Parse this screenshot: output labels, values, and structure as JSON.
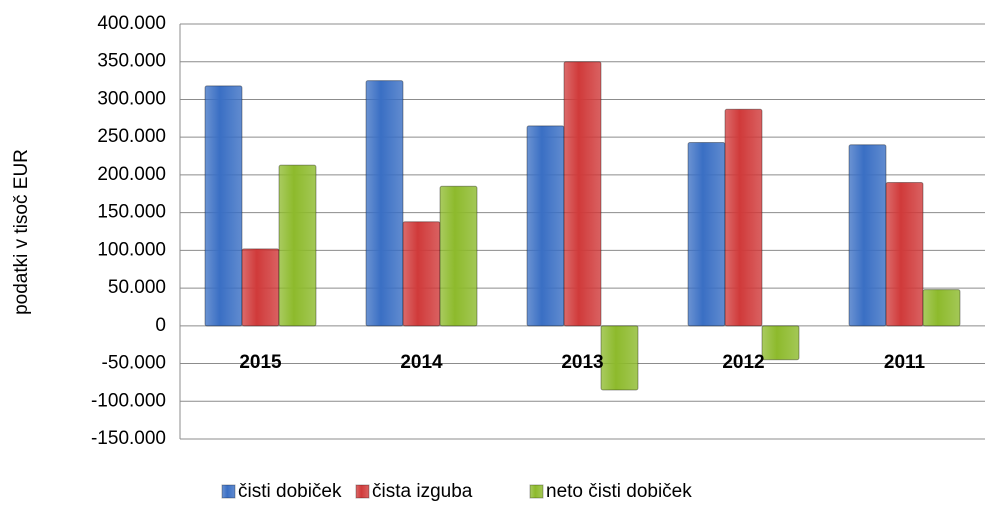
{
  "chart_data": {
    "type": "bar",
    "y_label": "podatki v tisoč  EUR",
    "categories": [
      "2015",
      "2014",
      "2013",
      "2012",
      "2011"
    ],
    "series": [
      {
        "name": "čisti dobiček",
        "color": "#3a6fc4",
        "values": [
          318000,
          325000,
          265000,
          243000,
          240000
        ]
      },
      {
        "name": "čista izguba",
        "color": "#d03a3a",
        "values": [
          102000,
          138000,
          350000,
          287000,
          190000
        ]
      },
      {
        "name": "neto čisti dobiček",
        "color": "#8dba2c",
        "values": [
          213000,
          185000,
          -85000,
          -45000,
          48000
        ]
      }
    ],
    "ylim": [
      -150000,
      400000
    ],
    "yticks": [
      {
        "value": -150000,
        "label": "-150.000"
      },
      {
        "value": -100000,
        "label": "-100.000"
      },
      {
        "value": -50000,
        "label": "-50.000"
      },
      0,
      {
        "value": 50000,
        "label": "50.000"
      },
      {
        "value": 100000,
        "label": "100.000"
      },
      {
        "value": 150000,
        "label": "150.000"
      },
      {
        "value": 200000,
        "label": "200.000"
      },
      {
        "value": 250000,
        "label": "250.000"
      },
      {
        "value": 300000,
        "label": "300.000"
      },
      {
        "value": 350000,
        "label": "350.000"
      },
      {
        "value": 400000,
        "label": "400.000"
      }
    ],
    "grid": true
  }
}
